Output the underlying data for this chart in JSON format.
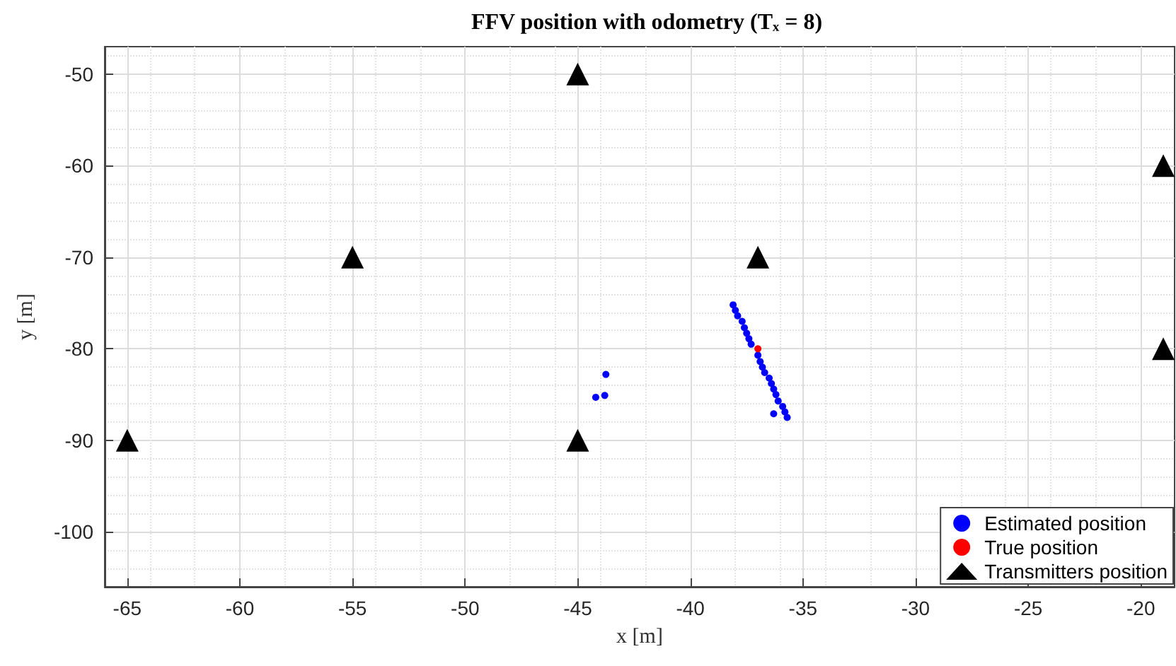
{
  "chart_data": {
    "type": "scatter",
    "title": "FFV position with odometry (Tₓ = 8)",
    "xlabel": "x [m]",
    "ylabel": "y [m]",
    "xlim": [
      -66,
      -18.5
    ],
    "ylim": [
      -106,
      -47
    ],
    "xticks": [
      -65,
      -60,
      -55,
      -50,
      -45,
      -40,
      -35,
      -30,
      -25,
      -20
    ],
    "yticks": [
      -100,
      -90,
      -80,
      -70,
      -60,
      -50
    ],
    "grid": true,
    "legend": "bottom right",
    "series": [
      {
        "name": "Estimated position",
        "color": "#0000ff",
        "marker": "circle",
        "x": [
          -38.1,
          -38.0,
          -37.9,
          -37.7,
          -37.6,
          -37.5,
          -37.4,
          -37.3,
          -37.1,
          -37.0,
          -36.9,
          -36.8,
          -36.7,
          -36.5,
          -36.4,
          -36.3,
          -36.2,
          -36.1,
          -35.9,
          -35.8,
          -35.7,
          -43.75,
          -43.8,
          -44.2,
          -36.3
        ],
        "values": [
          -75.2,
          -75.8,
          -76.4,
          -77.0,
          -77.7,
          -78.3,
          -78.9,
          -79.5,
          null,
          -80.7,
          -81.4,
          -82.0,
          -82.6,
          -83.2,
          -83.8,
          -84.4,
          -85.0,
          -85.7,
          -86.3,
          -86.9,
          -87.5,
          -82.8,
          -85.1,
          -85.3,
          -87.1
        ]
      },
      {
        "name": "True position",
        "color": "#ff0000",
        "marker": "circle",
        "x": [
          -37
        ],
        "values": [
          -80
        ]
      },
      {
        "name": "Transmitters position",
        "color": "#000000",
        "marker": "triangle",
        "x": [
          -65,
          -55,
          -45,
          -45,
          -37,
          -19,
          -19
        ],
        "values": [
          -90,
          -70,
          -50,
          -90,
          -70,
          -60,
          -80
        ]
      }
    ]
  }
}
